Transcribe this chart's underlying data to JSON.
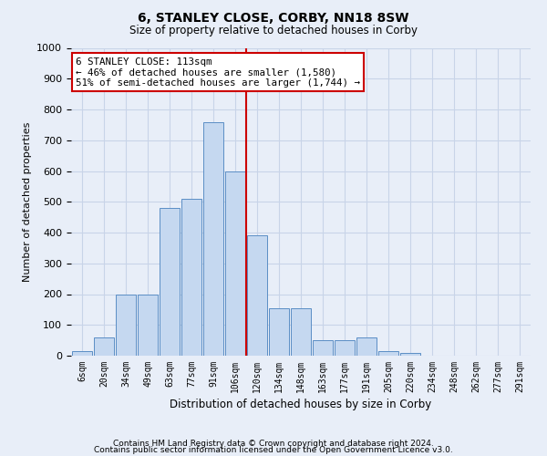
{
  "title": "6, STANLEY CLOSE, CORBY, NN18 8SW",
  "subtitle": "Size of property relative to detached houses in Corby",
  "xlabel": "Distribution of detached houses by size in Corby",
  "ylabel": "Number of detached properties",
  "categories": [
    "6sqm",
    "20sqm",
    "34sqm",
    "49sqm",
    "63sqm",
    "77sqm",
    "91sqm",
    "106sqm",
    "120sqm",
    "134sqm",
    "148sqm",
    "163sqm",
    "177sqm",
    "191sqm",
    "205sqm",
    "220sqm",
    "234sqm",
    "248sqm",
    "262sqm",
    "277sqm",
    "291sqm"
  ],
  "values": [
    15,
    60,
    200,
    200,
    480,
    510,
    760,
    600,
    390,
    155,
    155,
    50,
    50,
    60,
    15,
    10,
    0,
    0,
    0,
    0,
    0
  ],
  "bar_color": "#c5d8f0",
  "bar_edge_color": "#5b8ec5",
  "vline_x": 7.5,
  "vline_color": "#cc0000",
  "annotation_text": "6 STANLEY CLOSE: 113sqm\n← 46% of detached houses are smaller (1,580)\n51% of semi-detached houses are larger (1,744) →",
  "annotation_box_bg": "#ffffff",
  "annotation_box_edge": "#cc0000",
  "ylim": [
    0,
    1000
  ],
  "yticks": [
    0,
    100,
    200,
    300,
    400,
    500,
    600,
    700,
    800,
    900,
    1000
  ],
  "footer1": "Contains HM Land Registry data © Crown copyright and database right 2024.",
  "footer2": "Contains public sector information licensed under the Open Government Licence v3.0.",
  "bg_color": "#e8eef8",
  "grid_color": "#c8d4e8"
}
